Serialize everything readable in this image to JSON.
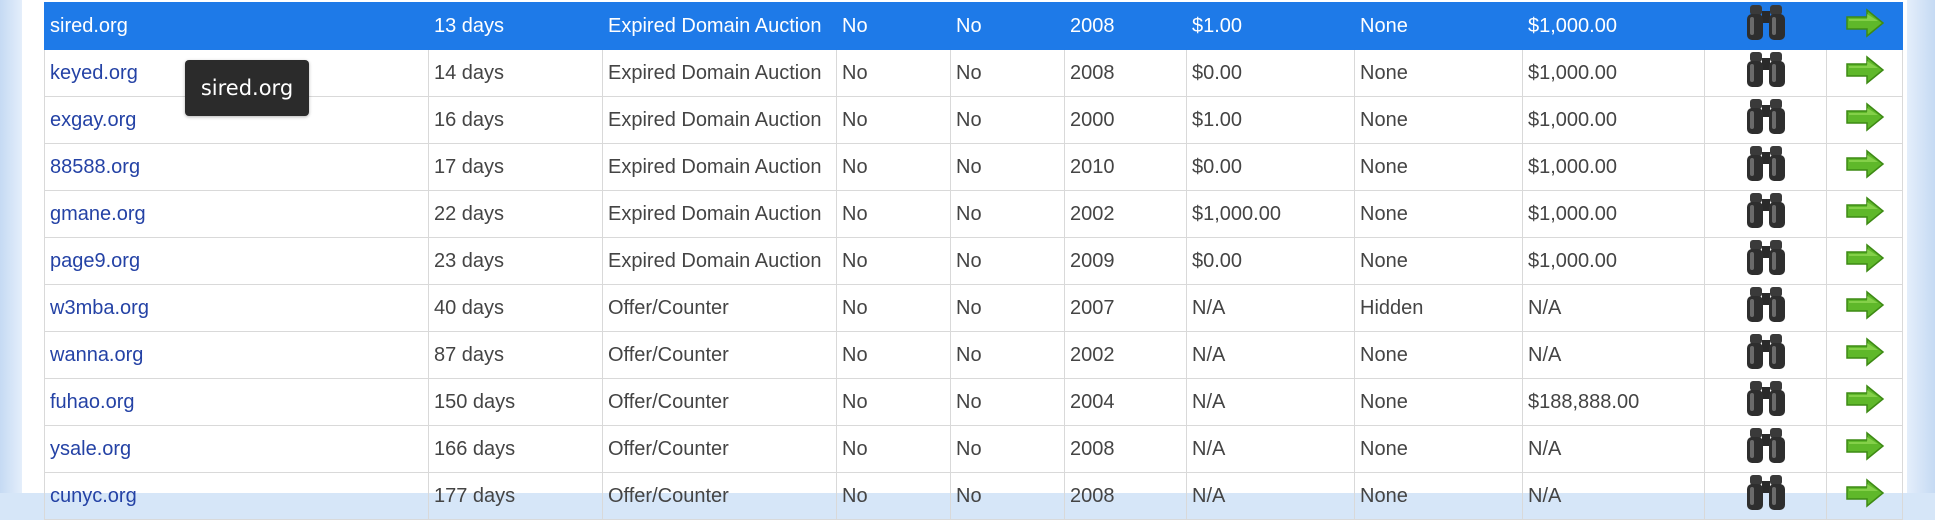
{
  "colors": {
    "selected_row": "#1e7ae8",
    "link": "#2442a5",
    "tooltip_bg": "#2b2b2b",
    "arrow": "#5fb82a"
  },
  "tooltip": {
    "text": "sired.org"
  },
  "rows": [
    {
      "domain": "sired.org",
      "age": "13 days",
      "type": "Expired Domain Auction",
      "c4": "No",
      "c5": "No",
      "year": "2008",
      "bid": "$1.00",
      "reserve": "None",
      "buy_now": "$1,000.00",
      "selected": true
    },
    {
      "domain": "keyed.org",
      "age": "14 days",
      "type": "Expired Domain Auction",
      "c4": "No",
      "c5": "No",
      "year": "2008",
      "bid": "$0.00",
      "reserve": "None",
      "buy_now": "$1,000.00"
    },
    {
      "domain": "exgay.org",
      "age": "16 days",
      "type": "Expired Domain Auction",
      "c4": "No",
      "c5": "No",
      "year": "2000",
      "bid": "$1.00",
      "reserve": "None",
      "buy_now": "$1,000.00"
    },
    {
      "domain": "88588.org",
      "age": "17 days",
      "type": "Expired Domain Auction",
      "c4": "No",
      "c5": "No",
      "year": "2010",
      "bid": "$0.00",
      "reserve": "None",
      "buy_now": "$1,000.00"
    },
    {
      "domain": "gmane.org",
      "age": "22 days",
      "type": "Expired Domain Auction",
      "c4": "No",
      "c5": "No",
      "year": "2002",
      "bid": "$1,000.00",
      "reserve": "None",
      "buy_now": "$1,000.00"
    },
    {
      "domain": "page9.org",
      "age": "23 days",
      "type": "Expired Domain Auction",
      "c4": "No",
      "c5": "No",
      "year": "2009",
      "bid": "$0.00",
      "reserve": "None",
      "buy_now": "$1,000.00"
    },
    {
      "domain": "w3mba.org",
      "age": "40 days",
      "type": "Offer/Counter",
      "c4": "No",
      "c5": "No",
      "year": "2007",
      "bid": "N/A",
      "reserve": "Hidden",
      "buy_now": "N/A"
    },
    {
      "domain": "wanna.org",
      "age": "87 days",
      "type": "Offer/Counter",
      "c4": "No",
      "c5": "No",
      "year": "2002",
      "bid": "N/A",
      "reserve": "None",
      "buy_now": "N/A"
    },
    {
      "domain": "fuhao.org",
      "age": "150 days",
      "type": "Offer/Counter",
      "c4": "No",
      "c5": "No",
      "year": "2004",
      "bid": "N/A",
      "reserve": "None",
      "buy_now": "$188,888.00"
    },
    {
      "domain": "ysale.org",
      "age": "166 days",
      "type": "Offer/Counter",
      "c4": "No",
      "c5": "No",
      "year": "2008",
      "bid": "N/A",
      "reserve": "None",
      "buy_now": "N/A"
    },
    {
      "domain": "cunyc.org",
      "age": "177 days",
      "type": "Offer/Counter",
      "c4": "No",
      "c5": "No",
      "year": "2008",
      "bid": "N/A",
      "reserve": "None",
      "buy_now": "N/A"
    }
  ],
  "icons": {
    "view": "binoculars-icon",
    "go": "green-arrow-icon"
  }
}
